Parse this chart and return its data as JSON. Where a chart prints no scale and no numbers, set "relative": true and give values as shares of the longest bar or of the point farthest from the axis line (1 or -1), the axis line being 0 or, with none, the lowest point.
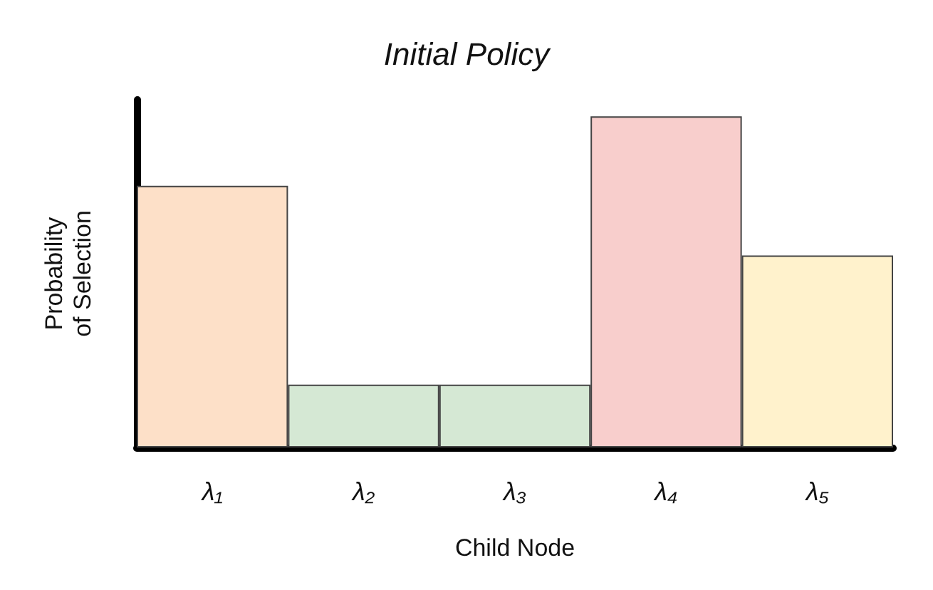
{
  "chart_data": {
    "type": "bar",
    "title": "Initial Policy",
    "xlabel": "Child Node",
    "ylabel": "Probability\nof Selection",
    "categories": [
      "λ₁",
      "λ₂",
      "λ₃",
      "λ₄",
      "λ₅"
    ],
    "values": [
      0.79,
      0.19,
      0.19,
      1,
      0.58
    ],
    "colors": [
      "#fde0c8",
      "#d5e8d4",
      "#d5e8d4",
      "#f8cecc",
      "#fff2cc"
    ],
    "relative": true
  }
}
